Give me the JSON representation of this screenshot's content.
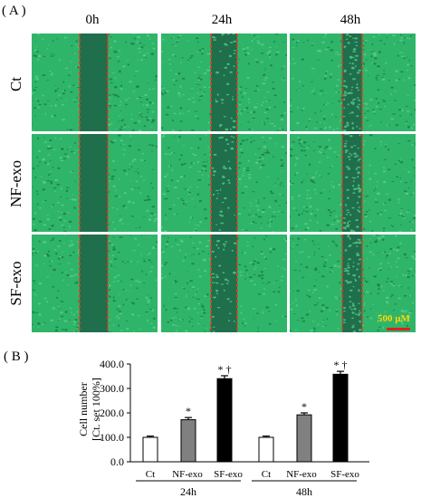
{
  "panel_a": {
    "label": "( A )",
    "columns": [
      "0h",
      "24h",
      "48h"
    ],
    "rows": [
      "Ct",
      "NF-exo",
      "SF-exo"
    ],
    "scale_bar": "500 μM",
    "colors": {
      "cells": "#2fb56a",
      "gap": "#1f6e4c",
      "border": "#e23b2a"
    }
  },
  "chart_data": {
    "type": "bar",
    "label": "( B )",
    "ylabel": "Cell number",
    "ylabel2": "[Ct. set 100%]",
    "ylim": [
      0,
      400
    ],
    "yticks": [
      "0.0",
      "100.0",
      "200.0",
      "300.0",
      "400.0"
    ],
    "yticks_values": [
      0,
      100,
      200,
      300,
      400
    ],
    "groups": [
      {
        "name": "24h",
        "bars": [
          {
            "category": "Ct",
            "value": 100,
            "error": 5,
            "color": "#ffffff",
            "marker": ""
          },
          {
            "category": "NF-exo",
            "value": 172,
            "error": 9,
            "color": "#808080",
            "marker": "*"
          },
          {
            "category": "SF-exo",
            "value": 340,
            "error": 12,
            "color": "#000000",
            "marker": "* †"
          }
        ]
      },
      {
        "name": "48h",
        "bars": [
          {
            "category": "Ct",
            "value": 100,
            "error": 5,
            "color": "#ffffff",
            "marker": ""
          },
          {
            "category": "NF-exo",
            "value": 192,
            "error": 8,
            "color": "#808080",
            "marker": "*"
          },
          {
            "category": "SF-exo",
            "value": 358,
            "error": 12,
            "color": "#000000",
            "marker": "* †"
          }
        ]
      }
    ]
  }
}
